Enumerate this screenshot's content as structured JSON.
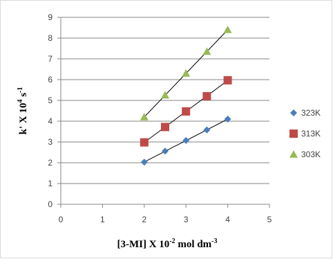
{
  "chart_data": {
    "type": "scatter",
    "title": "",
    "xlabel": {
      "main": "[3-MI] X 10",
      "sup": "-2",
      "tail": " mol dm",
      "sup2": "-3"
    },
    "ylabel": {
      "main": "k' X 10",
      "sup": "4",
      "tail": " s",
      "sup2": "-1"
    },
    "xlim": [
      0,
      5
    ],
    "ylim": [
      0,
      9
    ],
    "x_ticks": [
      "0",
      "1",
      "2",
      "3",
      "4",
      "5"
    ],
    "y_ticks": [
      "0",
      "1",
      "2",
      "3",
      "4",
      "5",
      "6",
      "7",
      "8",
      "9"
    ],
    "grid": "horizontal",
    "trendlines": true,
    "legend_position": "right",
    "series": [
      {
        "name": "323K",
        "marker": "diamond",
        "color": "#4a7ebb",
        "x": [
          2,
          2.5,
          3,
          3.5,
          4
        ],
        "y": [
          2.03,
          2.56,
          3.07,
          3.58,
          4.1
        ]
      },
      {
        "name": "313K",
        "marker": "square",
        "color": "#be4b48",
        "x": [
          2,
          2.5,
          3,
          3.5,
          4
        ],
        "y": [
          2.98,
          3.72,
          4.47,
          5.2,
          5.97
        ]
      },
      {
        "name": "303K",
        "marker": "triangle",
        "color": "#98b954",
        "x": [
          2,
          2.5,
          3,
          3.5,
          4
        ],
        "y": [
          4.2,
          5.25,
          6.3,
          7.35,
          8.4
        ]
      }
    ]
  }
}
